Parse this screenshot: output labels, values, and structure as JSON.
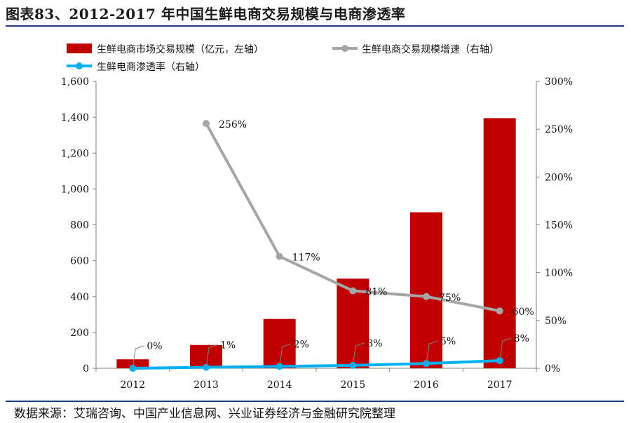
{
  "header": {
    "title": "图表83、2012-2017 年中国生鲜电商交易规模与电商渗透率"
  },
  "footer": {
    "source": "数据来源：艾瑞咨询、中国产业信息网、兴业证券经济与金融研究院整理"
  },
  "colors": {
    "bar": "#c00000",
    "growth": "#a6a6a6",
    "penetration": "#00b0f0",
    "rule": "#1f3d7a"
  },
  "chart_data": {
    "type": "bar",
    "categories": [
      "2012",
      "2013",
      "2014",
      "2015",
      "2016",
      "2017"
    ],
    "series": [
      {
        "name": "生鲜电商市场交易规模（亿元，左轴）",
        "kind": "bar",
        "axis": "left",
        "values": [
          50,
          130,
          275,
          500,
          870,
          1395
        ]
      },
      {
        "name": "生鲜电商交易规模增速（右轴）",
        "kind": "line",
        "axis": "right",
        "values": [
          null,
          2.56,
          1.17,
          0.81,
          0.75,
          0.6
        ],
        "labels": [
          "",
          "256%",
          "117%",
          "81%",
          "75%",
          "60%"
        ]
      },
      {
        "name": "生鲜电商渗透率（右轴）",
        "kind": "line",
        "axis": "right",
        "values": [
          0.0,
          0.01,
          0.02,
          0.03,
          0.05,
          0.08
        ],
        "labels": [
          "0%",
          "1%",
          "2%",
          "3%",
          "5%",
          "8%"
        ]
      }
    ],
    "y_left": {
      "range": [
        0,
        1600
      ],
      "ticks": [
        "0",
        "200",
        "400",
        "600",
        "800",
        "1,000",
        "1,200",
        "1,400",
        "1,600"
      ]
    },
    "y_right": {
      "range": [
        0,
        3
      ],
      "ticks": [
        "0%",
        "50%",
        "100%",
        "150%",
        "200%",
        "250%",
        "300%"
      ]
    },
    "legend": "top-left",
    "grid": false
  }
}
